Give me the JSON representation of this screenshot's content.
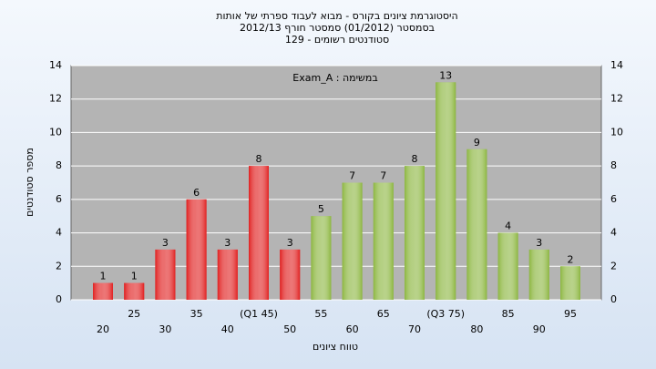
{
  "chart_data": {
    "type": "bar",
    "title": [
      "היסטוגרמת ציונים בקורס - מבוא לעבוד ספרתי של אותות",
      "בסמסטר  (01/2012)  סמסטר חורף 2012/13",
      "סטודנטים רשומים - 129"
    ],
    "annotation": "Exam_A : במשימה",
    "ylabel": "מספר סטודנטים",
    "xlabel": "טווח ציונים",
    "categories": [
      "20",
      "25",
      "30",
      "35",
      "40",
      "(Q1 45)",
      "50",
      "55",
      "60",
      "65",
      "70",
      "(Q3 75)",
      "80",
      "85",
      "90",
      "95"
    ],
    "values": [
      1,
      1,
      3,
      6,
      3,
      8,
      3,
      5,
      7,
      7,
      8,
      13,
      9,
      4,
      3,
      2
    ],
    "colors": [
      "#e02020",
      "#e02020",
      "#e02020",
      "#e02020",
      "#e02020",
      "#e02020",
      "#e02020",
      "#8cb640",
      "#8cb640",
      "#8cb640",
      "#8cb640",
      "#8cb640",
      "#8cb640",
      "#8cb640",
      "#8cb640",
      "#8cb640"
    ],
    "ylim": [
      0,
      14
    ],
    "yticks": [
      0,
      2,
      4,
      6,
      8,
      10,
      12,
      14
    ],
    "grid": true
  }
}
